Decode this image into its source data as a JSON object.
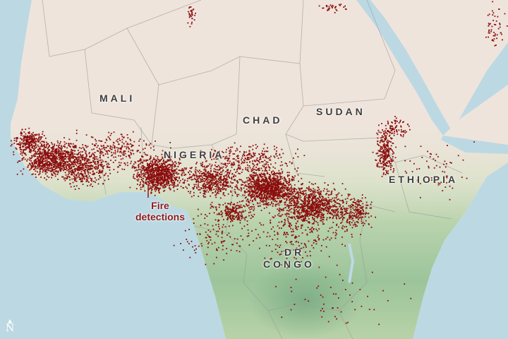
{
  "map": {
    "countries": [
      {
        "id": "mali",
        "label": "MALI"
      },
      {
        "id": "chad",
        "label": "CHAD"
      },
      {
        "id": "sudan",
        "label": "SUDAN"
      },
      {
        "id": "nigeria",
        "label": "NIGERIA"
      },
      {
        "id": "ethiopia",
        "label": "ETHIOPIA"
      },
      {
        "id": "dr-congo-line1",
        "label": "DR"
      },
      {
        "id": "dr-congo-line2",
        "label": "CONGO"
      }
    ],
    "annotation": {
      "line1": "Fire",
      "line2": "detections"
    },
    "north_arrow": {
      "symbol": "N"
    },
    "colors": {
      "ocean": "#bcd9e3",
      "desert": "#efe4dc",
      "vegetation": "#9fc49a",
      "fire": "#8b0e0e"
    }
  }
}
